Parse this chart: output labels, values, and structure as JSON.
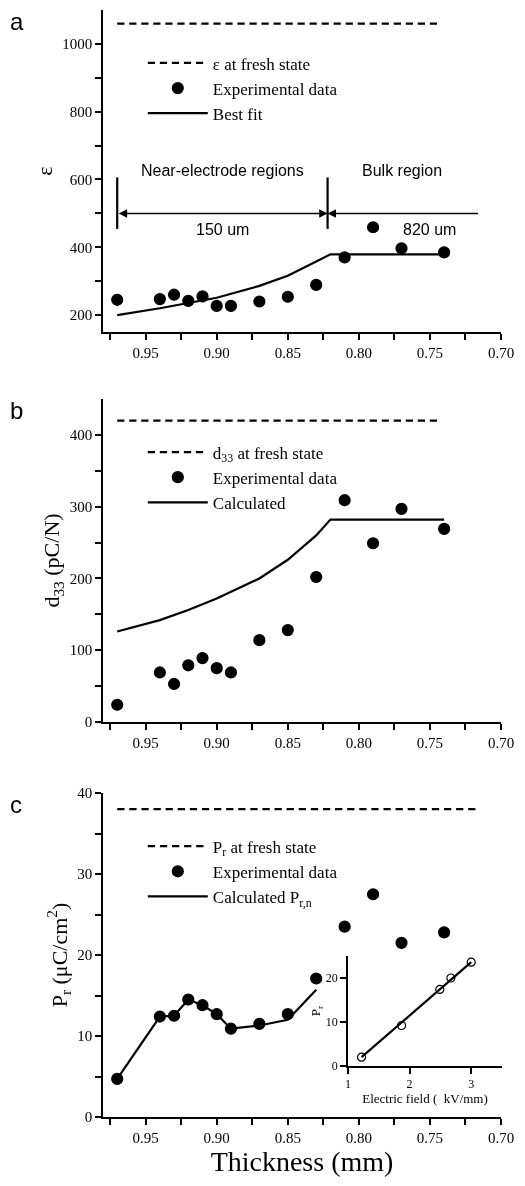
{
  "chart_data": [
    {
      "type": "scatter",
      "title": "a",
      "ylabel": "ε",
      "x": [
        0.97,
        0.94,
        0.93,
        0.92,
        0.91,
        0.9,
        0.89,
        0.87,
        0.85,
        0.83,
        0.81,
        0.79,
        0.77,
        0.74
      ],
      "series": [
        {
          "name": "ε at fresh state",
          "type": "line",
          "line_style": "dashed",
          "color": "#000000",
          "x": [
            0.97,
            0.745
          ],
          "values": [
            1060,
            1060
          ]
        },
        {
          "name": "Experimental data",
          "type": "scatter",
          "marker": "circle",
          "color": "#000000",
          "values": [
            245,
            247,
            260,
            242,
            255,
            227,
            227,
            240,
            254,
            289,
            370,
            459,
            397,
            385
          ]
        },
        {
          "name": "Best fit",
          "type": "line",
          "line_style": "solid",
          "color": "#000000",
          "x": [
            0.97,
            0.94,
            0.9,
            0.87,
            0.85,
            0.83,
            0.82,
            0.74
          ],
          "values": [
            200,
            220,
            251,
            286,
            316,
            358,
            379,
            379
          ]
        }
      ],
      "xlim": [
        0.98,
        0.7
      ],
      "xticks": [
        {
          "value": 0.975,
          "label": null
        },
        {
          "value": 0.95,
          "label": "0.95"
        },
        {
          "value": 0.925,
          "label": null
        },
        {
          "value": 0.9,
          "label": "0.90"
        },
        {
          "value": 0.875,
          "label": null
        },
        {
          "value": 0.85,
          "label": "0.85"
        },
        {
          "value": 0.825,
          "label": null
        },
        {
          "value": 0.8,
          "label": "0.80"
        },
        {
          "value": 0.775,
          "label": null
        },
        {
          "value": 0.75,
          "label": "0.75"
        },
        {
          "value": 0.725,
          "label": null
        },
        {
          "value": 0.7,
          "label": "0.70"
        }
      ],
      "ylim": [
        150,
        1100
      ],
      "yticks": [
        200,
        {
          "value": 300,
          "label": null
        },
        400,
        {
          "value": 500,
          "label": null
        },
        600,
        {
          "value": 700,
          "label": null
        },
        800,
        {
          "value": 900,
          "label": null
        },
        1000
      ],
      "ref_lines": [
        {
          "axis": "x",
          "value": 0.97,
          "label": null,
          "color": "#000000"
        },
        {
          "axis": "x",
          "value": 0.822,
          "label": null,
          "color": "#000000"
        }
      ],
      "annotations": [
        "Near-electrode regions",
        "Bulk region",
        "150 um",
        "820 um"
      ],
      "legend": "top left"
    },
    {
      "type": "scatter",
      "title": "b",
      "ylabel": "d$_{33}$ (pC/N)",
      "x": [
        0.97,
        0.94,
        0.93,
        0.92,
        0.91,
        0.9,
        0.89,
        0.87,
        0.85,
        0.83,
        0.81,
        0.79,
        0.77,
        0.74
      ],
      "series": [
        {
          "name": "d$_{33}$ at fresh state",
          "type": "line",
          "line_style": "dashed",
          "color": "#000000",
          "x": [
            0.97,
            0.745
          ],
          "values": [
            420,
            420
          ]
        },
        {
          "name": "Experimental data",
          "type": "scatter",
          "marker": "circle",
          "color": "#000000",
          "values": [
            24,
            69,
            53,
            79,
            89,
            75,
            69,
            114,
            128,
            202,
            309,
            249,
            297,
            269
          ]
        },
        {
          "name": "Calculated",
          "type": "line",
          "line_style": "solid",
          "color": "#000000",
          "x": [
            0.97,
            0.94,
            0.92,
            0.9,
            0.87,
            0.85,
            0.83,
            0.82,
            0.74
          ],
          "values": [
            126,
            142,
            156,
            172,
            200,
            226,
            260,
            282,
            282
          ]
        }
      ],
      "xlim": [
        0.98,
        0.7
      ],
      "xticks": [
        {
          "value": 0.975,
          "label": null
        },
        {
          "value": 0.95,
          "label": "0.95"
        },
        {
          "value": 0.925,
          "label": null
        },
        {
          "value": 0.9,
          "label": "0.90"
        },
        {
          "value": 0.875,
          "label": null
        },
        {
          "value": 0.85,
          "label": "0.85"
        },
        {
          "value": 0.825,
          "label": null
        },
        {
          "value": 0.8,
          "label": "0.80"
        },
        {
          "value": 0.775,
          "label": null
        },
        {
          "value": 0.75,
          "label": "0.75"
        },
        {
          "value": 0.725,
          "label": null
        },
        {
          "value": 0.7,
          "label": "0.70"
        }
      ],
      "ylim": [
        0,
        450
      ],
      "yticks": [
        0,
        {
          "value": 50,
          "label": null
        },
        100,
        {
          "value": 150,
          "label": null
        },
        200,
        {
          "value": 250,
          "label": null
        },
        300,
        {
          "value": 350,
          "label": null
        },
        400
      ],
      "legend": "top left"
    },
    {
      "type": "scatter",
      "title": "c",
      "xlabel": "Thickness (mm)",
      "ylabel": "P$_{r}$ (μC/cm$^{2}$)",
      "x": [
        0.97,
        0.94,
        0.93,
        0.92,
        0.91,
        0.9,
        0.89,
        0.87,
        0.85,
        0.83,
        0.81,
        0.79,
        0.77,
        0.74
      ],
      "series": [
        {
          "name": "P$_{r}$ at fresh state",
          "type": "line",
          "line_style": "dashed",
          "color": "#000000",
          "x": [
            0.97,
            0.718
          ],
          "values": [
            38,
            38
          ]
        },
        {
          "name": "Experimental data",
          "type": "scatter",
          "marker": "circle",
          "color": "#000000",
          "values": [
            4.7,
            12.4,
            12.5,
            14.5,
            13.8,
            12.7,
            10.9,
            11.5,
            12.7,
            17.1,
            23.5,
            27.5,
            21.5,
            22.8
          ]
        },
        {
          "name": "Calculated P$_{r,n}$",
          "type": "line",
          "line_style": "solid",
          "color": "#000000",
          "x": [
            0.97,
            0.94,
            0.93,
            0.92,
            0.91,
            0.9,
            0.89,
            0.87,
            0.85,
            0.83
          ],
          "values": [
            4.7,
            12.4,
            12.5,
            14.5,
            13.8,
            12.7,
            10.9,
            11.3,
            12.0,
            15.7
          ]
        }
      ],
      "xlim": [
        0.98,
        0.7
      ],
      "xticks": [
        {
          "value": 0.975,
          "label": null
        },
        {
          "value": 0.95,
          "label": "0.95"
        },
        {
          "value": 0.925,
          "label": null
        },
        {
          "value": 0.9,
          "label": "0.90"
        },
        {
          "value": 0.875,
          "label": null
        },
        {
          "value": 0.85,
          "label": "0.85"
        },
        {
          "value": 0.825,
          "label": null
        },
        {
          "value": 0.8,
          "label": "0.80"
        },
        {
          "value": 0.775,
          "label": null
        },
        {
          "value": 0.75,
          "label": "0.75"
        },
        {
          "value": 0.725,
          "label": null
        },
        {
          "value": 0.7,
          "label": "0.70"
        }
      ],
      "ylim": [
        0,
        40
      ],
      "yticks": [
        0,
        {
          "value": 5,
          "label": null
        },
        10,
        {
          "value": 15,
          "label": null
        },
        20,
        {
          "value": 25,
          "label": null
        },
        30,
        {
          "value": 35,
          "label": null
        },
        40
      ],
      "legend": "top left"
    },
    {
      "type": "scatter",
      "xlabel": "Electric field (  kV/mm)",
      "ylabel": "P$_{r}$",
      "x": [
        1.22,
        1.87,
        2.49,
        2.67,
        3.0
      ],
      "series": [
        {
          "type": "scatter",
          "marker": "circle",
          "color": "#ffffff",
          "values": [
            2.0,
            9.2,
            17.4,
            20.0,
            23.6
          ]
        },
        {
          "type": "line",
          "line_style": "solid",
          "color": "#000000",
          "x": [
            1.22,
            3.0
          ],
          "values": [
            2.0,
            23.6
          ]
        }
      ],
      "xlim": [
        1,
        3.5
      ],
      "xticks": [
        1,
        2,
        3
      ],
      "ylim": [
        0,
        25
      ],
      "yticks": [
        0,
        10,
        20
      ]
    }
  ]
}
